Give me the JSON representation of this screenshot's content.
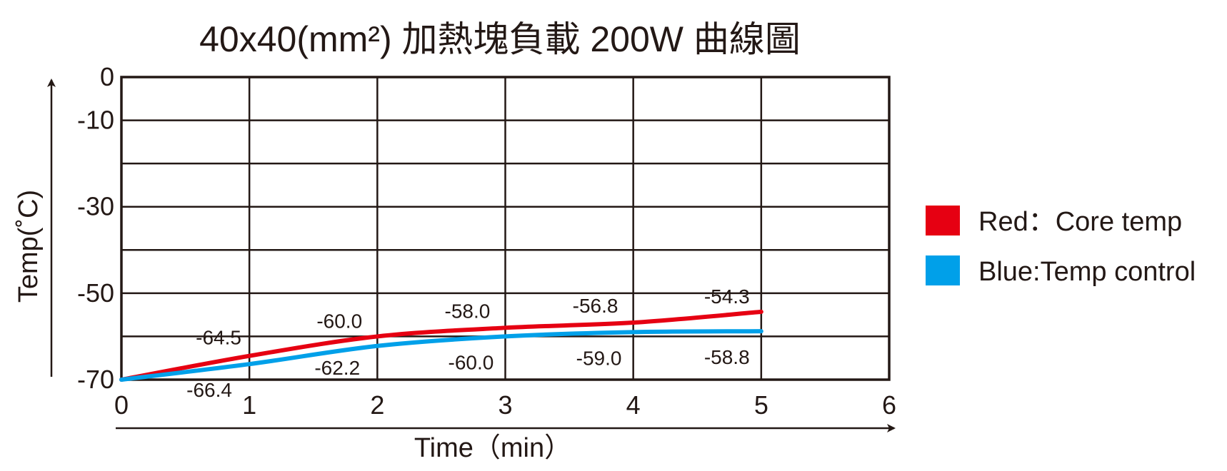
{
  "chart_data": {
    "type": "line",
    "title": "40x40(mm²) 加熱塊負載 200W 曲線圖",
    "xlabel": "Time（min）",
    "ylabel": "Temp(˚C)",
    "xlim": [
      0,
      6
    ],
    "ylim": [
      -70,
      0
    ],
    "x_ticks": [
      "0",
      "1",
      "2",
      "3",
      "4",
      "5",
      "6"
    ],
    "y_ticks": [
      {
        "value": 0,
        "label": "0"
      },
      {
        "value": -10,
        "label": "-10"
      },
      {
        "value": -30,
        "label": "-30"
      },
      {
        "value": -50,
        "label": "-50"
      },
      {
        "value": -70,
        "label": "-70"
      }
    ],
    "y_gridlines": [
      0,
      -10,
      -20,
      -30,
      -40,
      -50,
      -60,
      -70
    ],
    "grid": true,
    "legend_position": "right",
    "series": [
      {
        "name": "Red：Core temp",
        "color": "#e60012",
        "x": [
          0,
          1,
          2,
          3,
          4,
          5
        ],
        "y": [
          -70,
          -64.5,
          -60.0,
          -58.0,
          -56.8,
          -54.3
        ],
        "labels": [
          "",
          "-64.5",
          "-60.0",
          "-58.0",
          "-56.8",
          "-54.3"
        ]
      },
      {
        "name": "Blue:Temp control",
        "color": "#00a0e9",
        "x": [
          0,
          1,
          2,
          3,
          4,
          5
        ],
        "y": [
          -70,
          -66.4,
          -62.2,
          -60.0,
          -59.0,
          -58.8
        ],
        "labels": [
          "",
          "-66.4",
          "-62.2",
          "-60.0",
          "-59.0",
          "-58.8"
        ]
      }
    ]
  }
}
